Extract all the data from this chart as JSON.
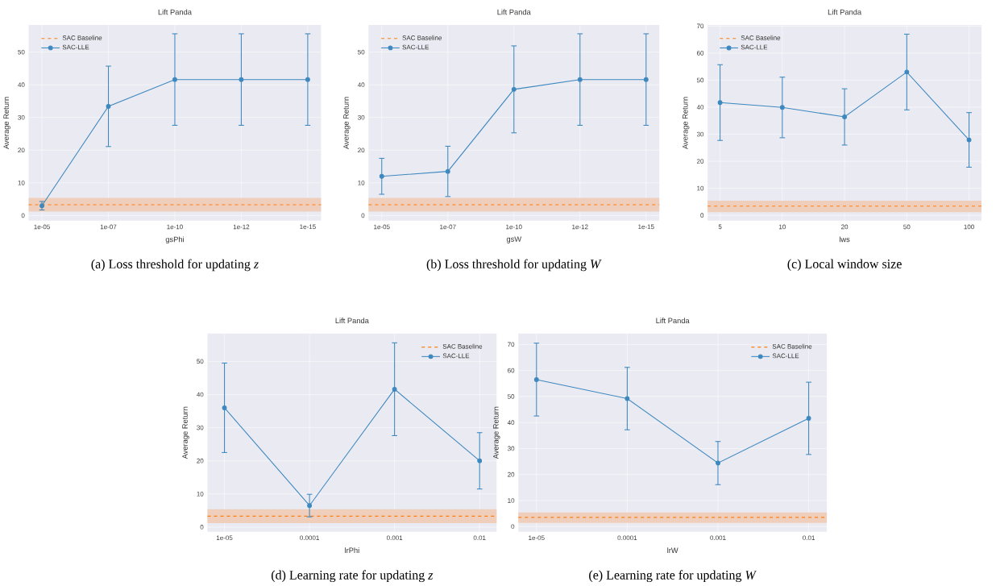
{
  "chart_data": [
    {
      "type": "line",
      "title": "Lift Panda",
      "xlabel": "gsPhi",
      "ylabel": "Average Return",
      "categories": [
        "1e-05",
        "1e-07",
        "1e-10",
        "1e-12",
        "1e-15"
      ],
      "series": [
        {
          "name": "SAC-LLE",
          "color": "#3d88bf",
          "values": [
            3.0,
            33.4,
            41.6,
            41.6,
            41.6
          ],
          "errors": [
            1.3,
            12.3,
            14.0,
            14.0,
            14.0
          ]
        }
      ],
      "ylim": [
        -1.6,
        58.3
      ],
      "yticks": [
        0,
        10,
        20,
        30,
        40,
        50
      ],
      "ref_lines": [
        {
          "axis": "y",
          "value": 3.3,
          "label": "SAC Baseline",
          "color": "#ff7f0e",
          "line_style": "dashed"
        }
      ],
      "bands": [
        {
          "axis": "y",
          "from": 1.2,
          "to": 5.4,
          "color": "#efcfbc"
        }
      ],
      "legend": "top left",
      "grid": true,
      "marker": "circle",
      "annotations": [
        "(a) Loss threshold for updating *z*"
      ]
    },
    {
      "type": "line",
      "title": "Lift Panda",
      "xlabel": "gsW",
      "ylabel": "Average Return",
      "categories": [
        "1e-05",
        "1e-07",
        "1e-10",
        "1e-12",
        "1e-15"
      ],
      "series": [
        {
          "name": "SAC-LLE",
          "color": "#3d88bf",
          "values": [
            12.0,
            13.5,
            38.6,
            41.6,
            41.6
          ],
          "errors": [
            5.5,
            7.7,
            13.3,
            14.0,
            14.0
          ]
        }
      ],
      "ylim": [
        -1.6,
        58.3
      ],
      "yticks": [
        0,
        10,
        20,
        30,
        40,
        50
      ],
      "ref_lines": [
        {
          "axis": "y",
          "value": 3.3,
          "label": "SAC Baseline",
          "color": "#ff7f0e",
          "line_style": "dashed"
        }
      ],
      "bands": [
        {
          "axis": "y",
          "from": 1.2,
          "to": 5.4,
          "color": "#efcfbc"
        }
      ],
      "legend": "top left",
      "grid": true,
      "marker": "circle",
      "annotations": [
        "(b) Loss threshold for updating *W*"
      ]
    },
    {
      "type": "line",
      "title": "Lift Panda",
      "xlabel": "lws",
      "ylabel": "Average Return",
      "categories": [
        "5",
        "10",
        "20",
        "50",
        "100"
      ],
      "series": [
        {
          "name": "SAC-LLE",
          "color": "#3d88bf",
          "values": [
            41.7,
            39.9,
            36.4,
            53.0,
            27.9
          ],
          "errors": [
            14.0,
            11.2,
            10.4,
            14.0,
            10.1
          ]
        }
      ],
      "ylim": [
        -2.0,
        70.4
      ],
      "yticks": [
        0,
        10,
        20,
        30,
        40,
        50,
        60,
        70
      ],
      "ref_lines": [
        {
          "axis": "y",
          "value": 3.4,
          "label": "SAC Baseline",
          "color": "#ff7f0e",
          "line_style": "dashed"
        }
      ],
      "bands": [
        {
          "axis": "y",
          "from": 1.2,
          "to": 5.4,
          "color": "#efcfbc"
        }
      ],
      "legend": "top left",
      "grid": true,
      "marker": "circle",
      "annotations": [
        "(c) Local window size"
      ]
    },
    {
      "type": "line",
      "title": "Lift Panda",
      "xlabel": "lrPhi",
      "ylabel": "Average Return",
      "categories": [
        "1e-05",
        "0.0001",
        "0.001",
        "0.01"
      ],
      "series": [
        {
          "name": "SAC-LLE",
          "color": "#3d88bf",
          "values": [
            36.0,
            6.5,
            41.6,
            20.0
          ],
          "errors": [
            13.5,
            3.4,
            14.0,
            8.5
          ]
        }
      ],
      "ylim": [
        -1.4,
        58.4
      ],
      "yticks": [
        0,
        10,
        20,
        30,
        40,
        50
      ],
      "ref_lines": [
        {
          "axis": "y",
          "value": 3.3,
          "label": "SAC Baseline",
          "color": "#ff7f0e",
          "line_style": "dashed"
        }
      ],
      "bands": [
        {
          "axis": "y",
          "from": 1.2,
          "to": 5.4,
          "color": "#efcfbc"
        }
      ],
      "legend": "top right",
      "grid": true,
      "marker": "circle",
      "annotations": [
        "(d) Learning rate for updating *z*"
      ]
    },
    {
      "type": "line",
      "title": "Lift Panda",
      "xlabel": "lrW",
      "ylabel": "Average Return",
      "categories": [
        "1e-05",
        "0.0001",
        "0.001",
        "0.01"
      ],
      "series": [
        {
          "name": "SAC-LLE",
          "color": "#3d88bf",
          "values": [
            56.5,
            49.2,
            24.4,
            41.6
          ],
          "errors": [
            14.0,
            12.0,
            8.3,
            13.9
          ]
        }
      ],
      "ylim": [
        -2.0,
        74.2
      ],
      "yticks": [
        0,
        10,
        20,
        30,
        40,
        50,
        60,
        70
      ],
      "ref_lines": [
        {
          "axis": "y",
          "value": 3.5,
          "label": "SAC Baseline",
          "color": "#ff7f0e",
          "line_style": "dashed"
        }
      ],
      "bands": [
        {
          "axis": "y",
          "from": 1.4,
          "to": 5.4,
          "color": "#efcfbc"
        }
      ],
      "legend": "top right",
      "grid": true,
      "marker": "circle",
      "annotations": [
        "(e) Learning rate for updating *W*"
      ]
    }
  ]
}
